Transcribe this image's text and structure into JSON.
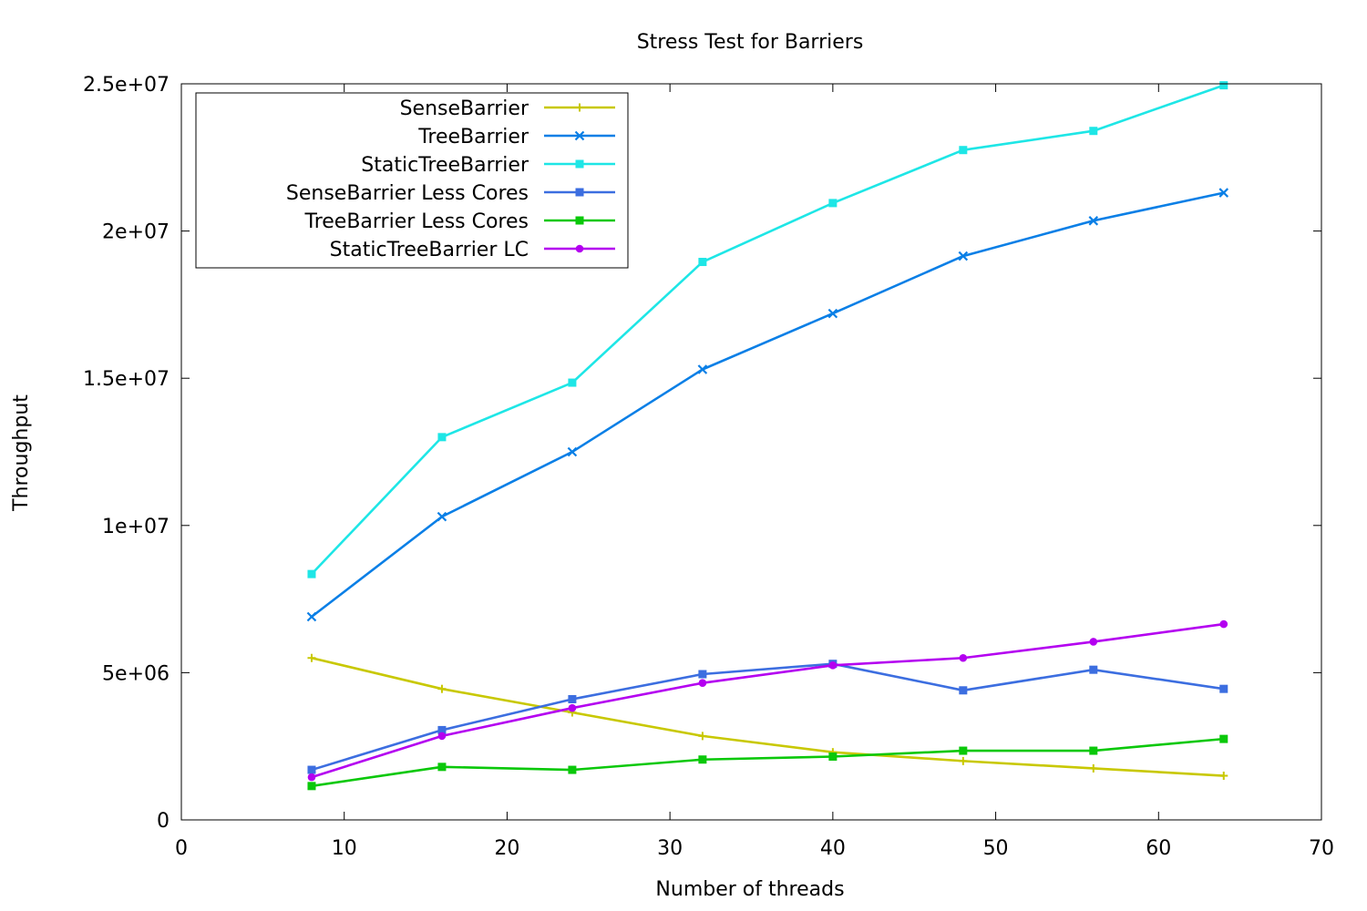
{
  "chart_data": {
    "type": "line",
    "title": "Stress Test for Barriers",
    "xlabel": "Number of threads",
    "ylabel": "Throughput",
    "xlim": [
      0,
      70
    ],
    "ylim": [
      0,
      25000000
    ],
    "xticks": [
      0,
      10,
      20,
      30,
      40,
      50,
      60,
      70
    ],
    "xtick_labels": [
      "0",
      "10",
      "20",
      "30",
      "40",
      "50",
      "60",
      "70"
    ],
    "yticks": [
      0,
      5000000,
      10000000,
      15000000,
      20000000,
      25000000
    ],
    "ytick_labels": [
      "0",
      "5e+06",
      "1e+07",
      "1.5e+07",
      "2e+07",
      "2.5e+07"
    ],
    "grid": false,
    "legend_position": "top-left",
    "x": [
      8,
      16,
      24,
      32,
      40,
      48,
      56,
      64
    ],
    "series": [
      {
        "name": "SenseBarrier",
        "color": "#c8c800",
        "marker": "plus",
        "values": [
          5500000,
          4450000,
          3650000,
          2850000,
          2300000,
          2000000,
          1750000,
          1500000
        ]
      },
      {
        "name": "TreeBarrier",
        "color": "#0a7fe6",
        "marker": "cross",
        "values": [
          6900000,
          10300000,
          12500000,
          15300000,
          17200000,
          19150000,
          20350000,
          21300000
        ]
      },
      {
        "name": "StaticTreeBarrier",
        "color": "#1ee6e6",
        "marker": "square",
        "values": [
          8350000,
          13000000,
          14850000,
          18950000,
          20950000,
          22750000,
          23400000,
          24950000
        ]
      },
      {
        "name": "SenseBarrier Less Cores",
        "color": "#3c6ee0",
        "marker": "square",
        "values": [
          1700000,
          3050000,
          4100000,
          4950000,
          5300000,
          4400000,
          5100000,
          4450000
        ]
      },
      {
        "name": "TreeBarrier Less Cores",
        "color": "#0ac80a",
        "marker": "square",
        "values": [
          1150000,
          1800000,
          1700000,
          2050000,
          2150000,
          2350000,
          2350000,
          2750000
        ]
      },
      {
        "name": "StaticTreeBarrier LC",
        "color": "#b400f0",
        "marker": "circle",
        "values": [
          1450000,
          2850000,
          3800000,
          4650000,
          5250000,
          5500000,
          6050000,
          6650000
        ]
      }
    ]
  }
}
